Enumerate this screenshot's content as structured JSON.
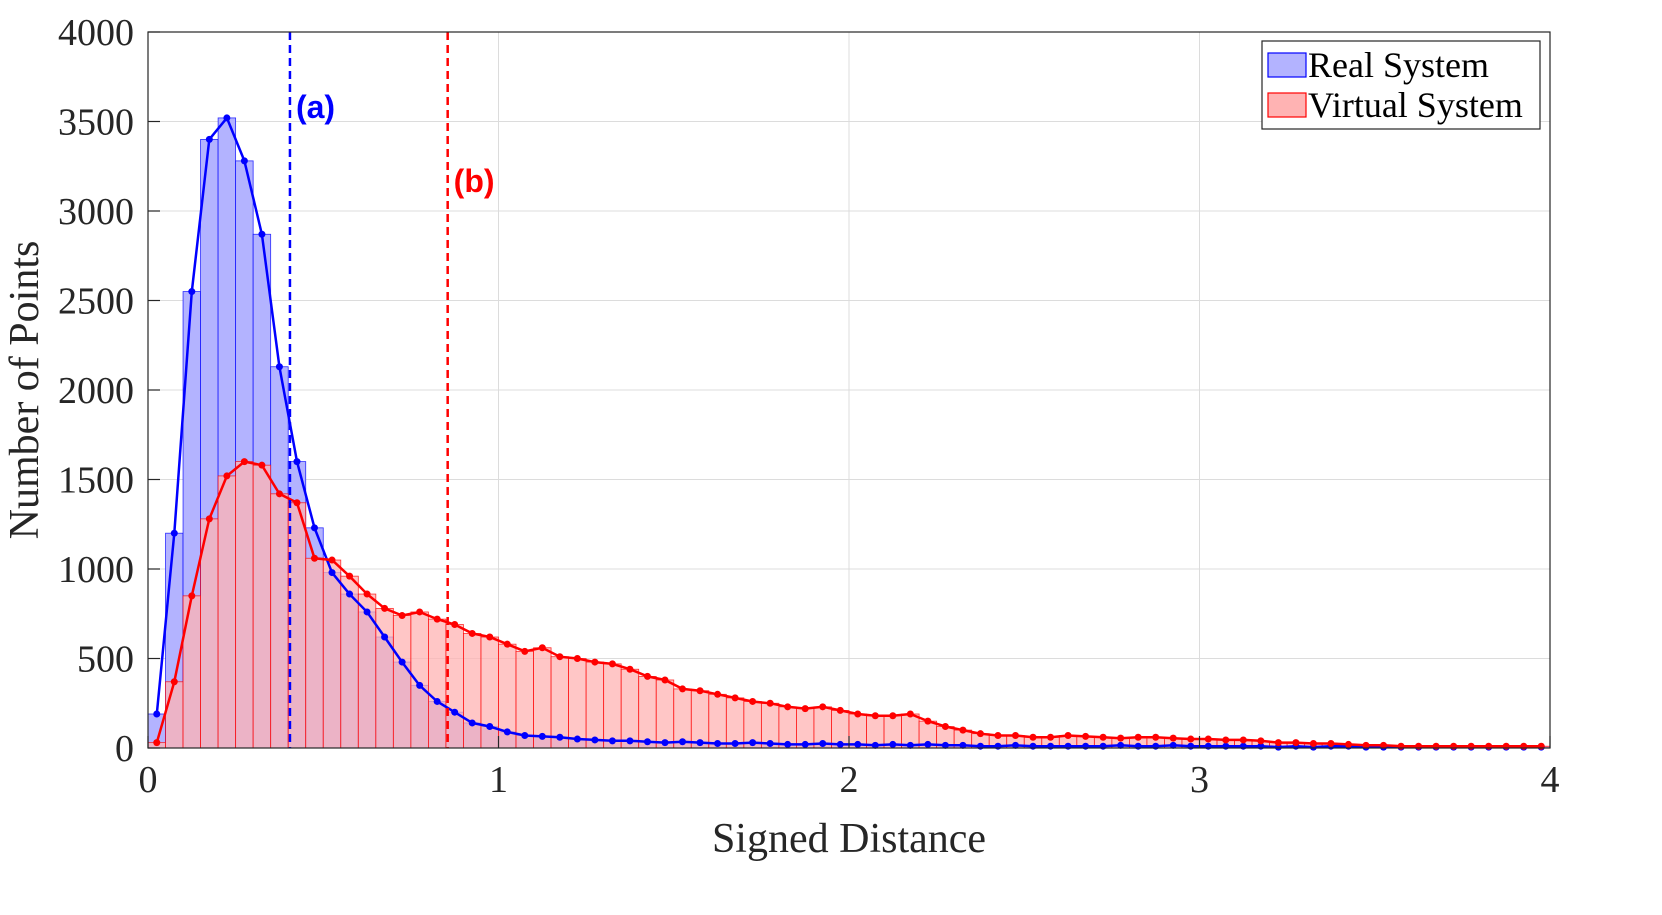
{
  "chart_data": {
    "type": "bar",
    "xlabel": "Signed Distance",
    "ylabel": "Number of Points",
    "xlim": [
      0,
      4
    ],
    "ylim": [
      0,
      4000
    ],
    "xticks": [
      "0",
      "1",
      "2",
      "3",
      "4"
    ],
    "yticks": [
      "0",
      "500",
      "1000",
      "1500",
      "2000",
      "2500",
      "3000",
      "3500",
      "4000"
    ],
    "grid": true,
    "legend_position": "top-right",
    "bin_width": 0.05,
    "series": [
      {
        "name": "Real System",
        "color": "#0000ff",
        "fill": "#b3b3ff",
        "values": [
          190,
          1200,
          2550,
          3400,
          3520,
          3280,
          2870,
          2130,
          1600,
          1230,
          980,
          860,
          760,
          620,
          480,
          350,
          260,
          200,
          140,
          120,
          90,
          70,
          65,
          60,
          50,
          45,
          40,
          40,
          35,
          30,
          35,
          30,
          25,
          25,
          30,
          25,
          20,
          20,
          25,
          20,
          20,
          15,
          20,
          15,
          20,
          15,
          15,
          10,
          10,
          15,
          10,
          10,
          10,
          10,
          10,
          15,
          10,
          10,
          15,
          10,
          10,
          10,
          10,
          10,
          5,
          10,
          5,
          10,
          10,
          5,
          5,
          5,
          5,
          5,
          5,
          5,
          5,
          5,
          5,
          5
        ]
      },
      {
        "name": "Virtual System",
        "color": "#ff0000",
        "fill": "#ffb3b3",
        "values": [
          30,
          370,
          850,
          1280,
          1520,
          1600,
          1580,
          1420,
          1370,
          1060,
          1050,
          960,
          860,
          780,
          740,
          760,
          720,
          690,
          640,
          620,
          580,
          540,
          560,
          510,
          500,
          480,
          470,
          440,
          400,
          380,
          330,
          320,
          300,
          280,
          260,
          250,
          230,
          220,
          230,
          210,
          190,
          180,
          180,
          190,
          150,
          120,
          100,
          80,
          70,
          70,
          60,
          60,
          70,
          65,
          60,
          55,
          60,
          60,
          55,
          50,
          50,
          45,
          45,
          40,
          30,
          30,
          25,
          25,
          20,
          15,
          15,
          10,
          10,
          10,
          10,
          10,
          10,
          10,
          10,
          10
        ]
      }
    ],
    "reference_lines": [
      {
        "x": 0.405,
        "label": "(a)",
        "color": "#0000ff"
      },
      {
        "x": 0.855,
        "label": "(b)",
        "color": "#ff0000"
      }
    ]
  }
}
